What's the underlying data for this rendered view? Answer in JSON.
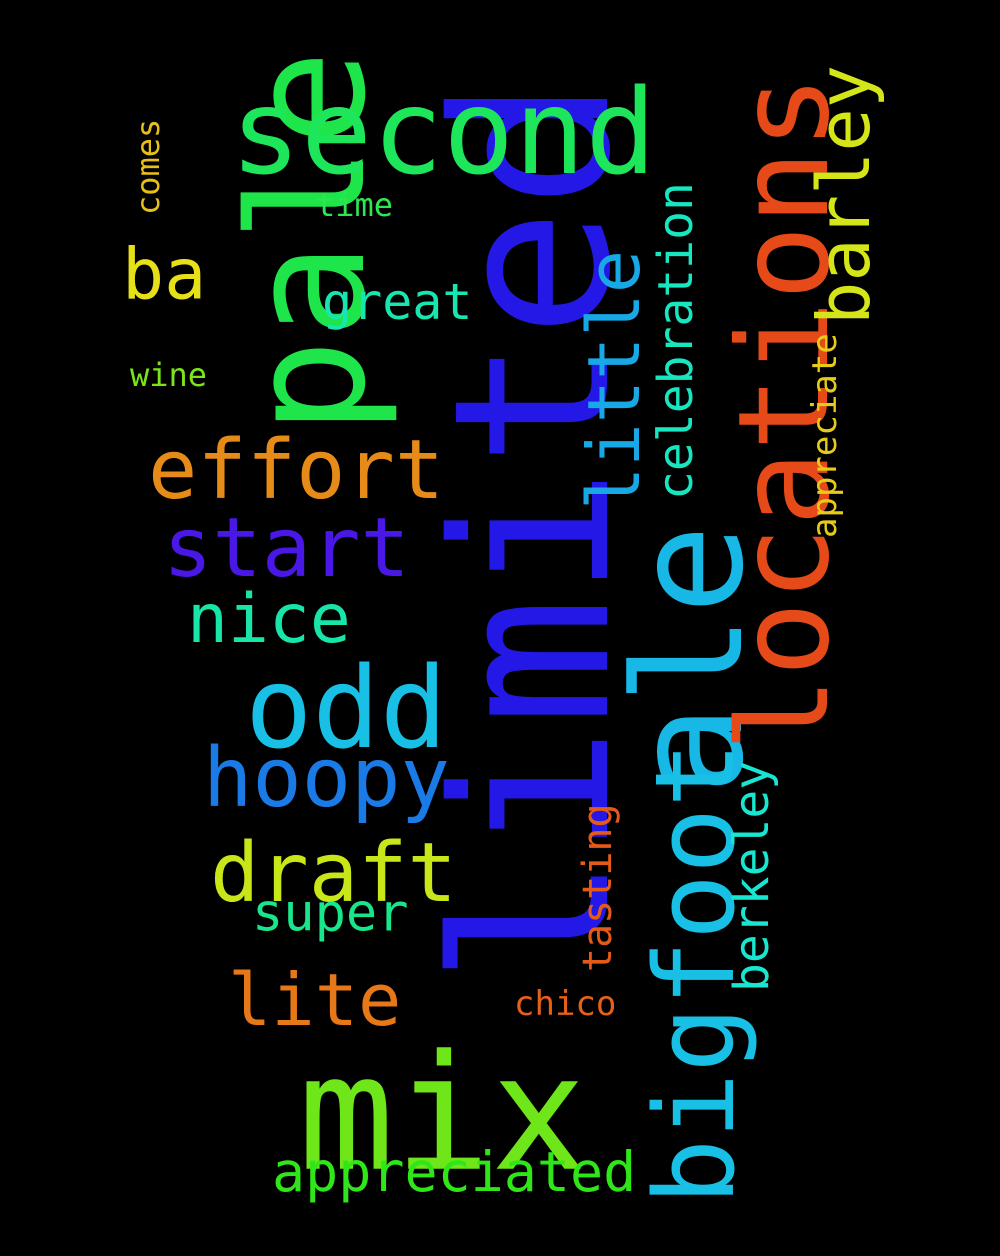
{
  "background": "#000000",
  "words": [
    {
      "text": "limited",
      "color": "#2318e6"
    },
    {
      "text": "mix",
      "color": "#6ee61a"
    },
    {
      "text": "pale",
      "color": "#1ee64a"
    },
    {
      "text": "ale",
      "color": "#18b8e6"
    },
    {
      "text": "second",
      "color": "#1ee65a"
    },
    {
      "text": "locations",
      "color": "#e64a18"
    },
    {
      "text": "bigfoot",
      "color": "#18c0e6"
    },
    {
      "text": "odd",
      "color": "#18c0e6"
    },
    {
      "text": "draft",
      "color": "#c8e618"
    },
    {
      "text": "effort",
      "color": "#e68a18"
    },
    {
      "text": "start",
      "color": "#4a18e6"
    },
    {
      "text": "hoopy",
      "color": "#1a7ae6"
    },
    {
      "text": "barley",
      "color": "#d4e618"
    },
    {
      "text": "little",
      "color": "#18a8e6"
    },
    {
      "text": "nice",
      "color": "#18e6a8"
    },
    {
      "text": "lite",
      "color": "#e67818"
    },
    {
      "text": "appreciated",
      "color": "#2ee618"
    },
    {
      "text": "ba",
      "color": "#e6e018"
    },
    {
      "text": "celebration",
      "color": "#18e6c0"
    },
    {
      "text": "berkeley",
      "color": "#18e6d0"
    },
    {
      "text": "super",
      "color": "#18e68a"
    },
    {
      "text": "great",
      "color": "#18e6b0"
    },
    {
      "text": "tasting",
      "color": "#e65a18"
    },
    {
      "text": "appreciate",
      "color": "#e6cc18"
    },
    {
      "text": "chico",
      "color": "#e66018"
    },
    {
      "text": "comes",
      "color": "#e6c018"
    },
    {
      "text": "time",
      "color": "#2ee650"
    },
    {
      "text": "wine",
      "color": "#7ae618"
    }
  ]
}
